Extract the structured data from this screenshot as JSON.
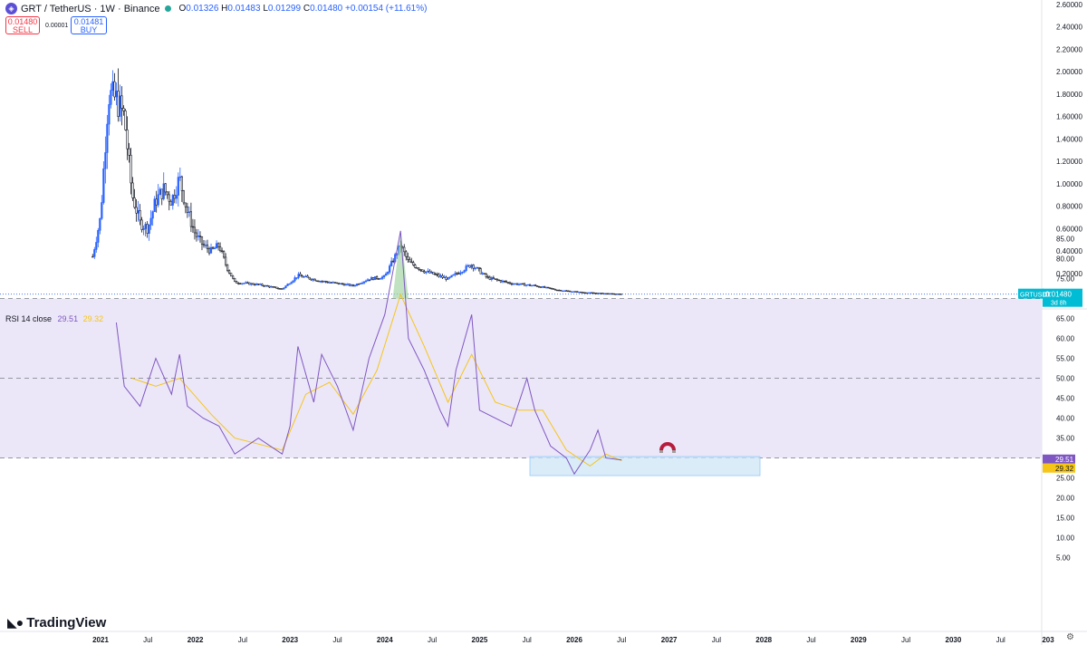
{
  "header": {
    "symbol": "GRT / TetherUS · 1W · Binance",
    "open": "0.01326",
    "high": "0.01483",
    "low": "0.01299",
    "close": "0.01480",
    "change": "+0.00154 (+11.61%)",
    "coin_icon": "grt-coin-icon",
    "status_color": "#26a69a"
  },
  "trade": {
    "sell_price": "0.01480",
    "sell_label": "SELL",
    "spread": "0.00001",
    "buy_price": "0.01481",
    "buy_label": "BUY"
  },
  "price_tag": {
    "symbol": "GRTUSDT",
    "price": "0.01480",
    "countdown": "3d 8h",
    "color": "#00bcd4"
  },
  "rsi_header": {
    "label": "RSI 14 close",
    "rsi": "29.51",
    "ma": "29.32"
  },
  "rsi_tags": {
    "rsi": "29.51",
    "ma": "29.32"
  },
  "branding": {
    "name": "TradingView"
  },
  "colors": {
    "up": "#2962ff",
    "down": "#131722",
    "rsi": "#7e57c2",
    "rsi_ma": "#f5c518",
    "band": "#ece7f8",
    "box": "#cfe6f7"
  },
  "chart_data": [
    {
      "type": "candlestick",
      "title": "GRT / TetherUS 1W",
      "x_axis_labels": [
        "2021",
        "Jul",
        "2022",
        "Jul",
        "2023",
        "Jul",
        "2024",
        "Jul",
        "2025",
        "Jul",
        "2026",
        "Jul",
        "2027",
        "Jul",
        "2028",
        "Jul",
        "2029",
        "Jul",
        "2030",
        "Jul",
        "203"
      ],
      "y_axis_labels": [
        "2.60000",
        "2.40000",
        "2.20000",
        "2.00000",
        "1.80000",
        "1.60000",
        "1.40000",
        "1.20000",
        "1.00000",
        "0.80000",
        "0.60000",
        "0.40000",
        "0.20000"
      ],
      "ylim": [
        0,
        2.6
      ],
      "series": [
        {
          "name": "GRTUSDT",
          "points": [
            [
              "2020-12",
              0.35
            ],
            [
              "2021-01",
              0.7
            ],
            [
              "2021-02",
              1.8
            ],
            [
              "2021-03",
              1.75
            ],
            [
              "2021-04",
              1.6
            ],
            [
              "2021-05",
              0.9
            ],
            [
              "2021-06",
              0.65
            ],
            [
              "2021-07",
              0.6
            ],
            [
              "2021-08",
              0.85
            ],
            [
              "2021-09",
              0.95
            ],
            [
              "2021-10",
              0.85
            ],
            [
              "2021-11",
              1.05
            ],
            [
              "2021-12",
              0.75
            ],
            [
              "2022-01",
              0.55
            ],
            [
              "2022-02",
              0.45
            ],
            [
              "2022-03",
              0.4
            ],
            [
              "2022-04",
              0.45
            ],
            [
              "2022-05",
              0.25
            ],
            [
              "2022-06",
              0.12
            ],
            [
              "2022-09",
              0.1
            ],
            [
              "2022-12",
              0.06
            ],
            [
              "2023-02",
              0.18
            ],
            [
              "2023-05",
              0.13
            ],
            [
              "2023-09",
              0.09
            ],
            [
              "2023-11",
              0.15
            ],
            [
              "2024-01",
              0.17
            ],
            [
              "2024-03",
              0.45
            ],
            [
              "2024-04",
              0.3
            ],
            [
              "2024-06",
              0.22
            ],
            [
              "2024-09",
              0.15
            ],
            [
              "2024-12",
              0.28
            ],
            [
              "2025-02",
              0.16
            ],
            [
              "2025-05",
              0.11
            ],
            [
              "2025-08",
              0.09
            ],
            [
              "2025-11",
              0.05
            ],
            [
              "2026-02",
              0.03
            ],
            [
              "2026-05",
              0.02
            ],
            [
              "2026-07",
              0.0148
            ]
          ]
        }
      ]
    },
    {
      "type": "line",
      "title": "RSI 14 close",
      "y_axis_labels": [
        "85.00",
        "80.00",
        "75.00",
        "70.00",
        "65.00",
        "60.00",
        "55.00",
        "50.00",
        "45.00",
        "40.00",
        "35.00",
        "30.00",
        "25.00",
        "20.00",
        "15.00",
        "10.00",
        "5.00"
      ],
      "ylim": [
        0,
        88
      ],
      "bands": [
        30,
        70
      ],
      "series": [
        {
          "name": "RSI",
          "points": [
            [
              "2021-03",
              64
            ],
            [
              "2021-04",
              48
            ],
            [
              "2021-06",
              43
            ],
            [
              "2021-08",
              55
            ],
            [
              "2021-10",
              46
            ],
            [
              "2021-11",
              56
            ],
            [
              "2021-12",
              43
            ],
            [
              "2022-02",
              40
            ],
            [
              "2022-04",
              38
            ],
            [
              "2022-06",
              31
            ],
            [
              "2022-09",
              35
            ],
            [
              "2022-12",
              31
            ],
            [
              "2023-01",
              38
            ],
            [
              "2023-02",
              58
            ],
            [
              "2023-04",
              44
            ],
            [
              "2023-05",
              56
            ],
            [
              "2023-07",
              48
            ],
            [
              "2023-09",
              37
            ],
            [
              "2023-11",
              55
            ],
            [
              "2024-01",
              66
            ],
            [
              "2024-03",
              87
            ],
            [
              "2024-04",
              60
            ],
            [
              "2024-06",
              52
            ],
            [
              "2024-08",
              42
            ],
            [
              "2024-09",
              38
            ],
            [
              "2024-10",
              52
            ],
            [
              "2024-12",
              66
            ],
            [
              "2025-01",
              42
            ],
            [
              "2025-03",
              40
            ],
            [
              "2025-05",
              38
            ],
            [
              "2025-07",
              50
            ],
            [
              "2025-08",
              42
            ],
            [
              "2025-10",
              33
            ],
            [
              "2025-12",
              30
            ],
            [
              "2026-01",
              26
            ],
            [
              "2026-03",
              32
            ],
            [
              "2026-04",
              37
            ],
            [
              "2026-05",
              30
            ],
            [
              "2026-07",
              29.51
            ]
          ]
        },
        {
          "name": "RSI MA",
          "points": [
            [
              "2021-05",
              50
            ],
            [
              "2021-08",
              48
            ],
            [
              "2021-11",
              50
            ],
            [
              "2022-03",
              41
            ],
            [
              "2022-06",
              35
            ],
            [
              "2022-12",
              32
            ],
            [
              "2023-03",
              46
            ],
            [
              "2023-06",
              49
            ],
            [
              "2023-09",
              41
            ],
            [
              "2023-12",
              52
            ],
            [
              "2024-03",
              71
            ],
            [
              "2024-06",
              58
            ],
            [
              "2024-09",
              44
            ],
            [
              "2024-12",
              56
            ],
            [
              "2025-03",
              44
            ],
            [
              "2025-06",
              42
            ],
            [
              "2025-09",
              42
            ],
            [
              "2025-12",
              32
            ],
            [
              "2026-03",
              28
            ],
            [
              "2026-05",
              31
            ],
            [
              "2026-07",
              29.32
            ]
          ]
        }
      ]
    }
  ]
}
